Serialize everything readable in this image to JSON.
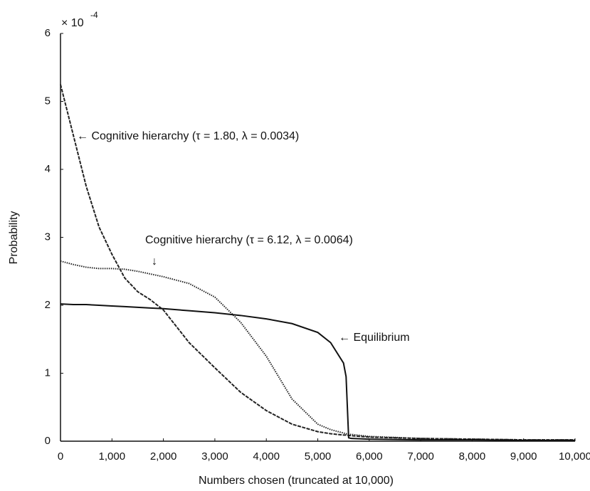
{
  "chart_data": {
    "type": "line",
    "xlabel": "Numbers chosen (truncated at 10,000)",
    "ylabel": "Probability",
    "y_multiplier": "× 10",
    "y_multiplier_exponent": "-4",
    "xlim": [
      0,
      10000
    ],
    "ylim": [
      0,
      6
    ],
    "xticks": [
      0,
      {
        "value": 1000,
        "label": "1,000"
      },
      {
        "value": 2000,
        "label": "2,000"
      },
      {
        "value": 3000,
        "label": "3,000"
      },
      {
        "value": 4000,
        "label": "4,000"
      },
      {
        "value": 5000,
        "label": "5,000"
      },
      {
        "value": 6000,
        "label": "6,000"
      },
      {
        "value": 7000,
        "label": "7,000"
      },
      {
        "value": 8000,
        "label": "8,000"
      },
      {
        "value": 9000,
        "label": "9,000"
      },
      {
        "value": 10000,
        "label": "10,000"
      }
    ],
    "yticks": [
      0,
      1,
      2,
      3,
      4,
      5,
      6
    ],
    "x": [
      0,
      250,
      500,
      750,
      1000,
      1250,
      1500,
      1750,
      2000,
      2500,
      3000,
      3500,
      4000,
      4500,
      5000,
      5250,
      5500,
      5550,
      5600,
      5650,
      6000,
      7000,
      8000,
      9000,
      10000
    ],
    "series": [
      {
        "color": "#222222",
        "dash": "dashed",
        "values": [
          5.25,
          4.5,
          3.75,
          3.15,
          2.75,
          2.4,
          2.2,
          2.08,
          1.93,
          1.45,
          1.08,
          0.72,
          0.45,
          0.25,
          0.14,
          0.11,
          0.09,
          0.09,
          0.085,
          0.08,
          0.06,
          0.04,
          0.03,
          0.02,
          0.02
        ]
      },
      {
        "color": "#222222",
        "dash": "dotted",
        "values": [
          2.65,
          2.6,
          2.56,
          2.54,
          2.54,
          2.53,
          2.5,
          2.46,
          2.42,
          2.32,
          2.12,
          1.75,
          1.25,
          0.62,
          0.25,
          0.17,
          0.12,
          0.11,
          0.1,
          0.1,
          0.07,
          0.04,
          0.03,
          0.02,
          0.02
        ]
      },
      {
        "color": "#111111",
        "dash": "solid",
        "values": [
          2.02,
          2.01,
          2.01,
          2.0,
          1.99,
          1.98,
          1.97,
          1.96,
          1.95,
          1.92,
          1.89,
          1.85,
          1.8,
          1.73,
          1.6,
          1.45,
          1.15,
          0.95,
          0.05,
          0.04,
          0.03,
          0.02,
          0.02,
          0.01,
          0.01
        ]
      }
    ],
    "annotations": [
      "← Cognitive hierarchy (τ = 1.80, λ = 0.0034)",
      "Cognitive hierarchy (τ = 6.12, λ = 0.0064)",
      "↓",
      "← Equilibrium"
    ]
  }
}
